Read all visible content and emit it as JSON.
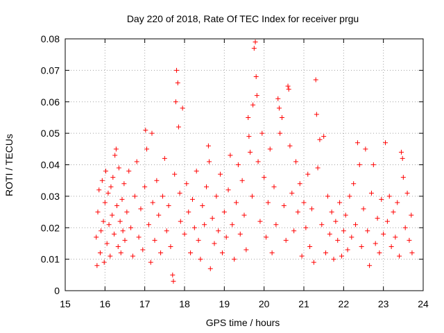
{
  "chart_data": {
    "type": "scatter",
    "title": "Day 220 of 2018, Rate Of TEC Index for receiver prgu",
    "xlabel": "GPS time / hours",
    "ylabel": "ROTI / TECUs",
    "xlim": [
      15,
      24
    ],
    "ylim": [
      0,
      0.08
    ],
    "x_ticks": [
      "15",
      "16",
      "17",
      "18",
      "19",
      "20",
      "21",
      "22",
      "23",
      "24"
    ],
    "y_ticks": [
      "0",
      "0.01",
      "0.02",
      "0.03",
      "0.04",
      "0.05",
      "0.06",
      "0.07",
      "0.08"
    ],
    "grid": true,
    "marker": "plus",
    "color": "#ff0000",
    "points": [
      [
        15.78,
        0.017
      ],
      [
        15.8,
        0.008
      ],
      [
        15.82,
        0.025
      ],
      [
        15.85,
        0.032
      ],
      [
        15.88,
        0.012
      ],
      [
        15.9,
        0.019
      ],
      [
        15.93,
        0.035
      ],
      [
        15.96,
        0.022
      ],
      [
        15.98,
        0.009
      ],
      [
        16.0,
        0.028
      ],
      [
        16.02,
        0.038
      ],
      [
        16.05,
        0.015
      ],
      [
        16.08,
        0.031
      ],
      [
        16.1,
        0.021
      ],
      [
        16.13,
        0.011
      ],
      [
        16.15,
        0.033
      ],
      [
        16.18,
        0.024
      ],
      [
        16.2,
        0.036
      ],
      [
        16.23,
        0.018
      ],
      [
        16.25,
        0.043
      ],
      [
        16.28,
        0.045
      ],
      [
        16.3,
        0.027
      ],
      [
        16.33,
        0.014
      ],
      [
        16.35,
        0.039
      ],
      [
        16.38,
        0.022
      ],
      [
        16.4,
        0.012
      ],
      [
        16.43,
        0.029
      ],
      [
        16.45,
        0.019
      ],
      [
        16.48,
        0.034
      ],
      [
        16.5,
        0.016
      ],
      [
        16.55,
        0.025
      ],
      [
        16.6,
        0.038
      ],
      [
        16.65,
        0.02
      ],
      [
        16.7,
        0.011
      ],
      [
        16.75,
        0.03
      ],
      [
        16.8,
        0.041
      ],
      [
        16.85,
        0.017
      ],
      [
        16.9,
        0.026
      ],
      [
        16.95,
        0.013
      ],
      [
        17.0,
        0.033
      ],
      [
        17.02,
        0.051
      ],
      [
        17.05,
        0.045
      ],
      [
        17.1,
        0.021
      ],
      [
        17.15,
        0.009
      ],
      [
        17.18,
        0.05
      ],
      [
        17.2,
        0.028
      ],
      [
        17.25,
        0.016
      ],
      [
        17.3,
        0.035
      ],
      [
        17.35,
        0.024
      ],
      [
        17.4,
        0.012
      ],
      [
        17.45,
        0.03
      ],
      [
        17.5,
        0.042
      ],
      [
        17.55,
        0.019
      ],
      [
        17.6,
        0.027
      ],
      [
        17.65,
        0.014
      ],
      [
        17.7,
        0.005
      ],
      [
        17.72,
        0.003
      ],
      [
        17.75,
        0.037
      ],
      [
        17.78,
        0.06
      ],
      [
        17.8,
        0.07
      ],
      [
        17.83,
        0.066
      ],
      [
        17.85,
        0.052
      ],
      [
        17.88,
        0.031
      ],
      [
        17.9,
        0.022
      ],
      [
        17.95,
        0.058
      ],
      [
        18.0,
        0.018
      ],
      [
        18.05,
        0.034
      ],
      [
        18.1,
        0.025
      ],
      [
        18.15,
        0.012
      ],
      [
        18.2,
        0.029
      ],
      [
        18.25,
        0.02
      ],
      [
        18.3,
        0.038
      ],
      [
        18.35,
        0.016
      ],
      [
        18.4,
        0.01
      ],
      [
        18.45,
        0.027
      ],
      [
        18.5,
        0.021
      ],
      [
        18.55,
        0.033
      ],
      [
        18.6,
        0.046
      ],
      [
        18.62,
        0.041
      ],
      [
        18.65,
        0.007
      ],
      [
        18.7,
        0.023
      ],
      [
        18.75,
        0.015
      ],
      [
        18.8,
        0.03
      ],
      [
        18.85,
        0.019
      ],
      [
        18.9,
        0.037
      ],
      [
        18.95,
        0.012
      ],
      [
        19.0,
        0.025
      ],
      [
        19.05,
        0.017
      ],
      [
        19.1,
        0.032
      ],
      [
        19.15,
        0.043
      ],
      [
        19.2,
        0.021
      ],
      [
        19.25,
        0.01
      ],
      [
        19.3,
        0.028
      ],
      [
        19.35,
        0.04
      ],
      [
        19.4,
        0.018
      ],
      [
        19.45,
        0.035
      ],
      [
        19.5,
        0.024
      ],
      [
        19.55,
        0.013
      ],
      [
        19.6,
        0.055
      ],
      [
        19.62,
        0.049
      ],
      [
        19.65,
        0.044
      ],
      [
        19.7,
        0.03
      ],
      [
        19.72,
        0.059
      ],
      [
        19.75,
        0.077
      ],
      [
        19.78,
        0.079
      ],
      [
        19.8,
        0.068
      ],
      [
        19.82,
        0.062
      ],
      [
        19.85,
        0.041
      ],
      [
        19.9,
        0.022
      ],
      [
        19.95,
        0.05
      ],
      [
        20.0,
        0.036
      ],
      [
        20.05,
        0.017
      ],
      [
        20.1,
        0.028
      ],
      [
        20.15,
        0.045
      ],
      [
        20.2,
        0.012
      ],
      [
        20.25,
        0.033
      ],
      [
        20.3,
        0.021
      ],
      [
        20.35,
        0.061
      ],
      [
        20.38,
        0.058
      ],
      [
        20.4,
        0.05
      ],
      [
        20.45,
        0.055
      ],
      [
        20.5,
        0.027
      ],
      [
        20.55,
        0.016
      ],
      [
        20.6,
        0.065
      ],
      [
        20.62,
        0.064
      ],
      [
        20.65,
        0.046
      ],
      [
        20.7,
        0.031
      ],
      [
        20.75,
        0.019
      ],
      [
        20.8,
        0.041
      ],
      [
        20.85,
        0.025
      ],
      [
        20.9,
        0.034
      ],
      [
        20.95,
        0.011
      ],
      [
        21.0,
        0.028
      ],
      [
        21.05,
        0.02
      ],
      [
        21.1,
        0.037
      ],
      [
        21.15,
        0.014
      ],
      [
        21.2,
        0.026
      ],
      [
        21.25,
        0.009
      ],
      [
        21.3,
        0.067
      ],
      [
        21.32,
        0.056
      ],
      [
        21.35,
        0.039
      ],
      [
        21.4,
        0.048
      ],
      [
        21.45,
        0.021
      ],
      [
        21.5,
        0.049
      ],
      [
        21.55,
        0.012
      ],
      [
        21.6,
        0.03
      ],
      [
        21.65,
        0.018
      ],
      [
        21.7,
        0.025
      ],
      [
        21.75,
        0.01
      ],
      [
        21.8,
        0.022
      ],
      [
        21.85,
        0.016
      ],
      [
        21.9,
        0.028
      ],
      [
        21.95,
        0.011
      ],
      [
        22.0,
        0.019
      ],
      [
        22.05,
        0.024
      ],
      [
        22.1,
        0.013
      ],
      [
        22.15,
        0.03
      ],
      [
        22.2,
        0.017
      ],
      [
        22.25,
        0.034
      ],
      [
        22.3,
        0.021
      ],
      [
        22.35,
        0.047
      ],
      [
        22.4,
        0.04
      ],
      [
        22.45,
        0.014
      ],
      [
        22.5,
        0.026
      ],
      [
        22.55,
        0.045
      ],
      [
        22.6,
        0.019
      ],
      [
        22.65,
        0.008
      ],
      [
        22.7,
        0.031
      ],
      [
        22.75,
        0.04
      ],
      [
        22.8,
        0.015
      ],
      [
        22.85,
        0.023
      ],
      [
        22.9,
        0.012
      ],
      [
        22.95,
        0.029
      ],
      [
        23.0,
        0.018
      ],
      [
        23.05,
        0.047
      ],
      [
        23.1,
        0.022
      ],
      [
        23.15,
        0.03
      ],
      [
        23.2,
        0.014
      ],
      [
        23.25,
        0.025
      ],
      [
        23.3,
        0.017
      ],
      [
        23.35,
        0.028
      ],
      [
        23.4,
        0.011
      ],
      [
        23.45,
        0.044
      ],
      [
        23.48,
        0.042
      ],
      [
        23.5,
        0.036
      ],
      [
        23.55,
        0.02
      ],
      [
        23.6,
        0.031
      ],
      [
        23.65,
        0.016
      ],
      [
        23.7,
        0.024
      ],
      [
        23.72,
        0.012
      ]
    ]
  }
}
